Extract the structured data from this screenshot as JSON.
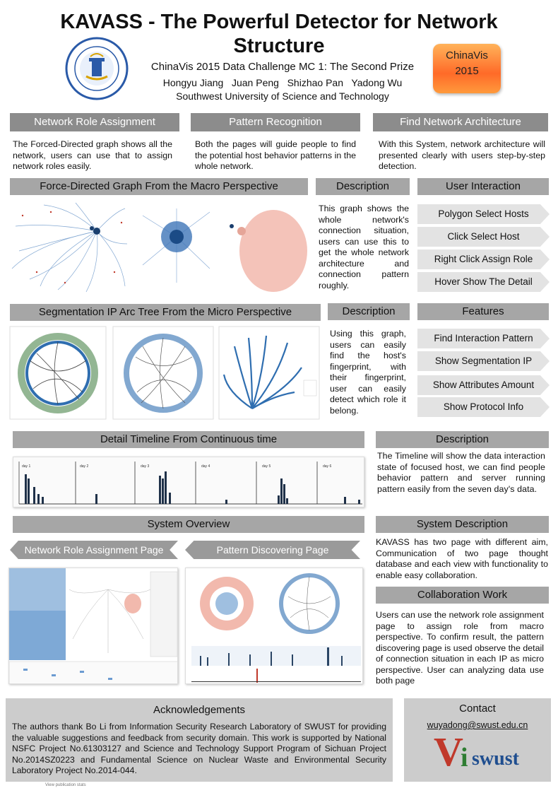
{
  "header": {
    "title_line1": "KAVASS - The Powerful Detector for Network",
    "title_line2": "Structure",
    "subtitle": "ChinaVis 2015 Data Challenge MC 1: The Second Prize",
    "authors": "Hongyu Jiang   Juan Peng   Shizhao Pan   Yadong Wu",
    "affiliation": "Southwest University of Science and Technology",
    "badge_line1": "ChinaVis",
    "badge_line2": "2015"
  },
  "top_sections": [
    {
      "title": "Network Role Assignment",
      "text": "The Forced-Directed graph shows all the network, users can use that to assign network roles easily."
    },
    {
      "title": "Pattern Recognition",
      "text": "Both the pages will guide people to find the potential host behavior patterns in the whole network."
    },
    {
      "title": "Find Network Architecture",
      "text": "With this System, network architecture will presented clearly with users step-by-step detection."
    }
  ],
  "force_section": {
    "title": "Force-Directed Graph From the Macro Perspective",
    "desc_title": "Description",
    "desc_text": "This graph shows the whole network's connection situation, users can use this to get the whole network architecture and connection pattern roughly.",
    "ui_title": "User Interaction",
    "ui_items": [
      "Polygon Select Hosts",
      "Click Select Host",
      "Right Click Assign Role",
      "Hover Show The Detail"
    ]
  },
  "arc_section": {
    "title": "Segmentation IP Arc Tree From the Micro Perspective",
    "desc_title": "Description",
    "desc_text": "Using this graph, users can easily find the host's fingerprint, with their fingerprint, user can easily detect which role it belong.",
    "features_title": "Features",
    "features": [
      "Find Interaction Pattern",
      "Show Segmentation IP",
      "Show Attributes Amount",
      "Show Protocol Info"
    ]
  },
  "timeline_section": {
    "title": "Detail Timeline From Continuous time",
    "desc_title": "Description",
    "desc_text": "The Timeline will show the data interaction state of focused host, we can find people behavior pattern and server running pattern easily from the seven day's data.",
    "day_labels": [
      "day 1",
      "day 2",
      "day 3",
      "day 4",
      "day 5",
      "day 6"
    ]
  },
  "overview_section": {
    "title": "System Overview",
    "page1": "Network Role Assignment Page",
    "page2": "Pattern Discovering Page",
    "sys_desc_title": "System Description",
    "sys_desc_text": "KAVASS has two page with different aim, Communication of two page thought database and each view with functionality to enable easy collaboration.",
    "collab_title": "Collaboration Work",
    "collab_text": "Users can use the network role assignment page to assign role from macro perspective. To confirm result, the pattern discovering page is used observe the detail of connection situation in each IP as micro perspective. User can analyzing data use both page"
  },
  "acknowledgements": {
    "title": "Acknowledgements",
    "text": "The authors thank Bo Li from Information Security Research Laboratory of SWUST for providing the valuable suggestions and feedback from security domain. This work is supported by National NSFC Project No.61303127 and Science and Technology Support Program of Sichuan Project No.2014SZ0223 and Fundamental Science on Nuclear Waste and Environmental Security Laboratory Project No.2014-044."
  },
  "contact": {
    "title": "Contact",
    "email": "wuyadong@swust.edu.cn",
    "logo_v": "V",
    "logo_i": "i",
    "logo_rest": "swust"
  },
  "footer": {
    "note": "View publication stats"
  }
}
